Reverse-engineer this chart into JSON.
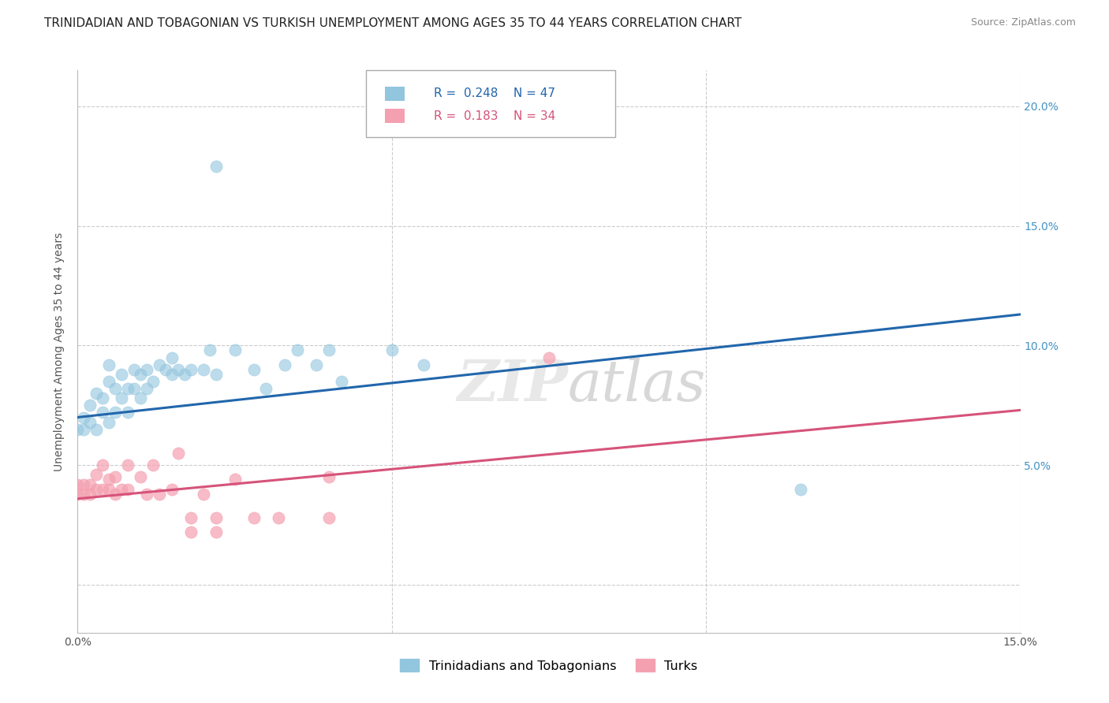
{
  "title": "TRINIDADIAN AND TOBAGONIAN VS TURKISH UNEMPLOYMENT AMONG AGES 35 TO 44 YEARS CORRELATION CHART",
  "source": "Source: ZipAtlas.com",
  "ylabel": "Unemployment Among Ages 35 to 44 years",
  "xlim": [
    0.0,
    0.15
  ],
  "ylim": [
    -0.02,
    0.215
  ],
  "x_ticks": [
    0.0,
    0.05,
    0.1,
    0.15
  ],
  "x_tick_labels": [
    "0.0%",
    "",
    "",
    "15.0%"
  ],
  "y_ticks": [
    0.0,
    0.05,
    0.1,
    0.15,
    0.2
  ],
  "y_tick_labels_right": [
    "",
    "5.0%",
    "10.0%",
    "15.0%",
    "20.0%"
  ],
  "legend_labels": [
    "Trinidadians and Tobagonians",
    "Turks"
  ],
  "legend_r1": "R =  0.248",
  "legend_n1": "N = 47",
  "legend_r2": "R =  0.183",
  "legend_n2": "N = 34",
  "blue_color": "#92c5de",
  "pink_color": "#f4a0b0",
  "blue_line_color": "#2166ac",
  "pink_line_color": "#d6537a",
  "right_tick_color": "#4393c3",
  "trinidadian_points": [
    [
      0.0,
      0.065
    ],
    [
      0.001,
      0.07
    ],
    [
      0.001,
      0.065
    ],
    [
      0.002,
      0.068
    ],
    [
      0.002,
      0.075
    ],
    [
      0.003,
      0.065
    ],
    [
      0.003,
      0.08
    ],
    [
      0.004,
      0.072
    ],
    [
      0.004,
      0.078
    ],
    [
      0.005,
      0.068
    ],
    [
      0.005,
      0.085
    ],
    [
      0.005,
      0.092
    ],
    [
      0.006,
      0.072
    ],
    [
      0.006,
      0.082
    ],
    [
      0.007,
      0.078
    ],
    [
      0.007,
      0.088
    ],
    [
      0.008,
      0.072
    ],
    [
      0.008,
      0.082
    ],
    [
      0.009,
      0.082
    ],
    [
      0.009,
      0.09
    ],
    [
      0.01,
      0.078
    ],
    [
      0.01,
      0.088
    ],
    [
      0.011,
      0.082
    ],
    [
      0.011,
      0.09
    ],
    [
      0.012,
      0.085
    ],
    [
      0.013,
      0.092
    ],
    [
      0.014,
      0.09
    ],
    [
      0.015,
      0.088
    ],
    [
      0.015,
      0.095
    ],
    [
      0.016,
      0.09
    ],
    [
      0.017,
      0.088
    ],
    [
      0.018,
      0.09
    ],
    [
      0.02,
      0.09
    ],
    [
      0.021,
      0.098
    ],
    [
      0.022,
      0.088
    ],
    [
      0.025,
      0.098
    ],
    [
      0.028,
      0.09
    ],
    [
      0.03,
      0.082
    ],
    [
      0.033,
      0.092
    ],
    [
      0.035,
      0.098
    ],
    [
      0.038,
      0.092
    ],
    [
      0.04,
      0.098
    ],
    [
      0.042,
      0.085
    ],
    [
      0.05,
      0.098
    ],
    [
      0.055,
      0.092
    ],
    [
      0.115,
      0.04
    ],
    [
      0.022,
      0.175
    ]
  ],
  "turkish_points": [
    [
      0.0,
      0.038
    ],
    [
      0.0,
      0.042
    ],
    [
      0.001,
      0.038
    ],
    [
      0.001,
      0.042
    ],
    [
      0.002,
      0.038
    ],
    [
      0.002,
      0.042
    ],
    [
      0.003,
      0.04
    ],
    [
      0.003,
      0.046
    ],
    [
      0.004,
      0.04
    ],
    [
      0.004,
      0.05
    ],
    [
      0.005,
      0.04
    ],
    [
      0.005,
      0.044
    ],
    [
      0.006,
      0.038
    ],
    [
      0.006,
      0.045
    ],
    [
      0.007,
      0.04
    ],
    [
      0.008,
      0.04
    ],
    [
      0.008,
      0.05
    ],
    [
      0.01,
      0.045
    ],
    [
      0.011,
      0.038
    ],
    [
      0.012,
      0.05
    ],
    [
      0.013,
      0.038
    ],
    [
      0.015,
      0.04
    ],
    [
      0.016,
      0.055
    ],
    [
      0.018,
      0.022
    ],
    [
      0.018,
      0.028
    ],
    [
      0.02,
      0.038
    ],
    [
      0.022,
      0.022
    ],
    [
      0.022,
      0.028
    ],
    [
      0.025,
      0.044
    ],
    [
      0.028,
      0.028
    ],
    [
      0.032,
      0.028
    ],
    [
      0.04,
      0.045
    ],
    [
      0.04,
      0.028
    ],
    [
      0.075,
      0.095
    ]
  ],
  "blue_trendline_x": [
    0.0,
    0.15
  ],
  "blue_trendline_y": [
    0.07,
    0.113
  ],
  "pink_trendline_x": [
    0.0,
    0.15
  ],
  "pink_trendline_y": [
    0.036,
    0.073
  ],
  "background_color": "#ffffff",
  "grid_color": "#cccccc",
  "title_fontsize": 11,
  "axis_label_fontsize": 10,
  "tick_fontsize": 10,
  "legend_fontsize": 11
}
